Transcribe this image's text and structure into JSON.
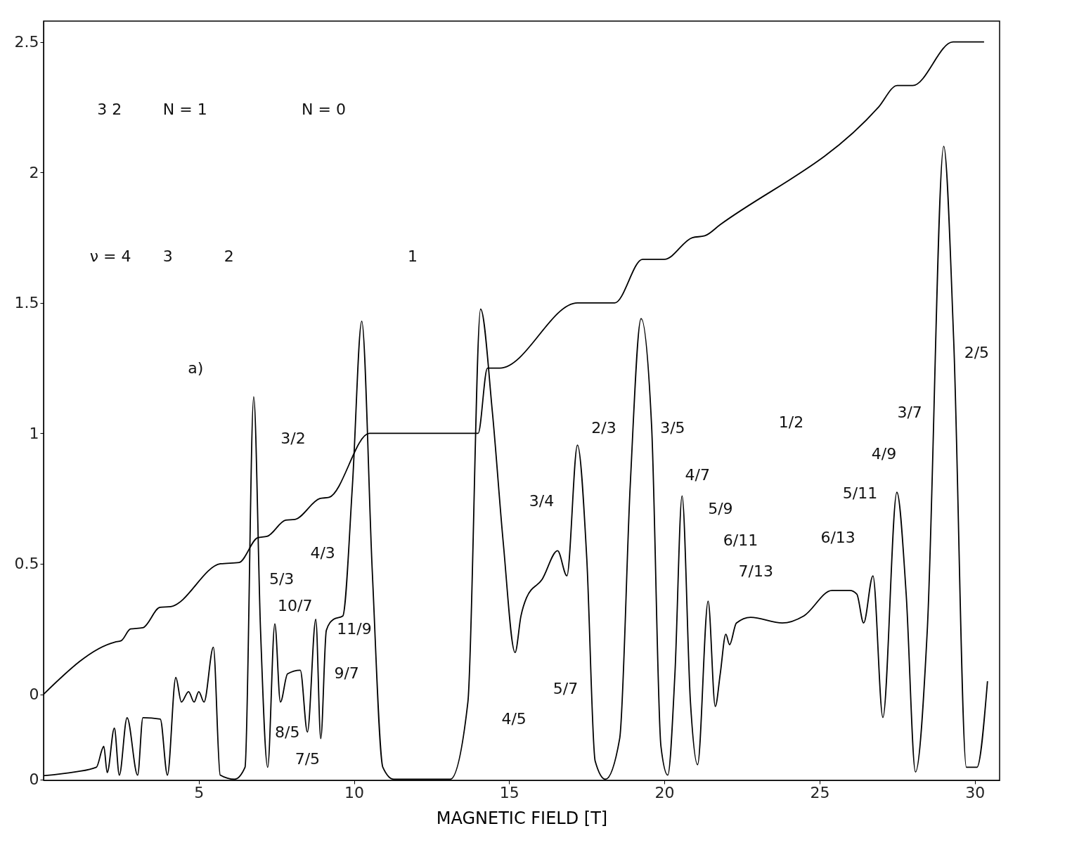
{
  "chart_data": {
    "type": "line",
    "xlabel": "MAGNETIC FIELD [T]",
    "xlim": [
      0,
      30.8
    ],
    "xticks": [
      5,
      10,
      15,
      20,
      25,
      30
    ],
    "ylim": [
      -0.33,
      2.58
    ],
    "yticks": [
      {
        "value": -0.326,
        "label": "0"
      },
      0,
      0.5,
      1,
      1.5,
      2,
      2.5
    ],
    "grid": false,
    "marker": "none",
    "line_style": "solid",
    "series": [
      {
        "color": "#000000",
        "x": [
          0,
          2.3,
          2.5,
          2.8,
          3.2,
          3.75,
          4.1,
          5.7,
          6.3,
          6.9,
          7.2,
          7.8,
          8.1,
          8.9,
          9.2,
          10.5,
          14.0,
          14.3,
          14.7,
          17.2,
          18.4,
          19.3,
          20.0,
          20.9,
          21.3,
          21.8,
          26.9,
          27.5,
          28.0,
          29.3,
          30.3
        ],
        "values": [
          0,
          0.2,
          0.205,
          0.25,
          0.255,
          0.333,
          0.336,
          0.5,
          0.505,
          0.6,
          0.605,
          0.667,
          0.67,
          0.75,
          0.755,
          1,
          1,
          1.25,
          1.25,
          1.5,
          1.5,
          1.667,
          1.667,
          1.75,
          1.757,
          1.8,
          2.25,
          2.333,
          2.333,
          2.5,
          2.5
        ]
      },
      {
        "color": "#000000",
        "x": [
          0,
          1.0,
          1.7,
          1.94,
          2.05,
          2.28,
          2.44,
          2.69,
          3.03,
          3.2,
          3.76,
          3.99,
          4.26,
          4.44,
          4.67,
          4.85,
          5.0,
          5.17,
          5.47,
          5.69,
          6.15,
          6.49,
          6.77,
          6.99,
          7.22,
          7.45,
          7.63,
          7.86,
          8.27,
          8.5,
          8.77,
          8.93,
          9.11,
          9.34,
          9.64,
          9.95,
          10.25,
          10.59,
          10.93,
          11.28,
          12.6,
          13.1,
          13.67,
          14.08,
          14.46,
          14.81,
          15.19,
          15.38,
          15.56,
          16.06,
          16.56,
          16.86,
          17.2,
          17.5,
          17.77,
          18.1,
          18.56,
          18.9,
          19.25,
          19.59,
          19.89,
          20.11,
          20.34,
          20.57,
          20.84,
          21.07,
          21.41,
          21.64,
          21.8,
          21.98,
          22.1,
          22.32,
          22.78,
          23.8,
          24.49,
          25.4,
          25.97,
          26.2,
          26.42,
          26.72,
          27.04,
          27.49,
          27.79,
          28.09,
          28.47,
          29.0,
          29.32,
          29.73,
          30.07,
          30.41
        ],
        "values": [
          -0.312,
          -0.298,
          -0.28,
          -0.2,
          -0.3,
          -0.13,
          -0.31,
          -0.09,
          -0.31,
          -0.09,
          -0.095,
          -0.31,
          0.064,
          -0.03,
          0.01,
          -0.03,
          0.01,
          -0.03,
          0.18,
          -0.31,
          -0.326,
          -0.28,
          1.14,
          0.245,
          -0.28,
          0.27,
          -0.03,
          0.078,
          0.092,
          -0.145,
          0.287,
          -0.17,
          0.245,
          0.287,
          0.3,
          0.8,
          1.43,
          0.47,
          -0.28,
          -0.326,
          -0.326,
          -0.326,
          -0.03,
          1.476,
          1.08,
          0.58,
          0.16,
          0.3,
          0.37,
          0.44,
          0.55,
          0.454,
          0.955,
          0.52,
          -0.256,
          -0.326,
          -0.17,
          0.8,
          1.44,
          1.025,
          -0.2,
          -0.31,
          0.078,
          0.76,
          -0.03,
          -0.27,
          0.357,
          -0.047,
          0.078,
          0.23,
          0.19,
          0.273,
          0.295,
          0.273,
          0.3,
          0.398,
          0.398,
          0.384,
          0.273,
          0.454,
          -0.089,
          0.774,
          0.384,
          -0.298,
          0.245,
          2.1,
          1.36,
          -0.28,
          -0.28,
          0.05
        ]
      }
    ],
    "annotations": [
      "ν = 4",
      "3",
      "2",
      "1",
      "3 2",
      "N = 1",
      "N = 0",
      "a)",
      "3/2",
      "5/3",
      "4/3",
      "10/7",
      "11/9",
      "9/7",
      "8/5",
      "7/5",
      "4/5",
      "3/4",
      "5/7",
      "2/3",
      "3/5",
      "4/7",
      "5/9",
      "6/11",
      "7/13",
      "1/2",
      "6/13",
      "5/11",
      "4/9",
      "3/7",
      "2/5"
    ]
  }
}
